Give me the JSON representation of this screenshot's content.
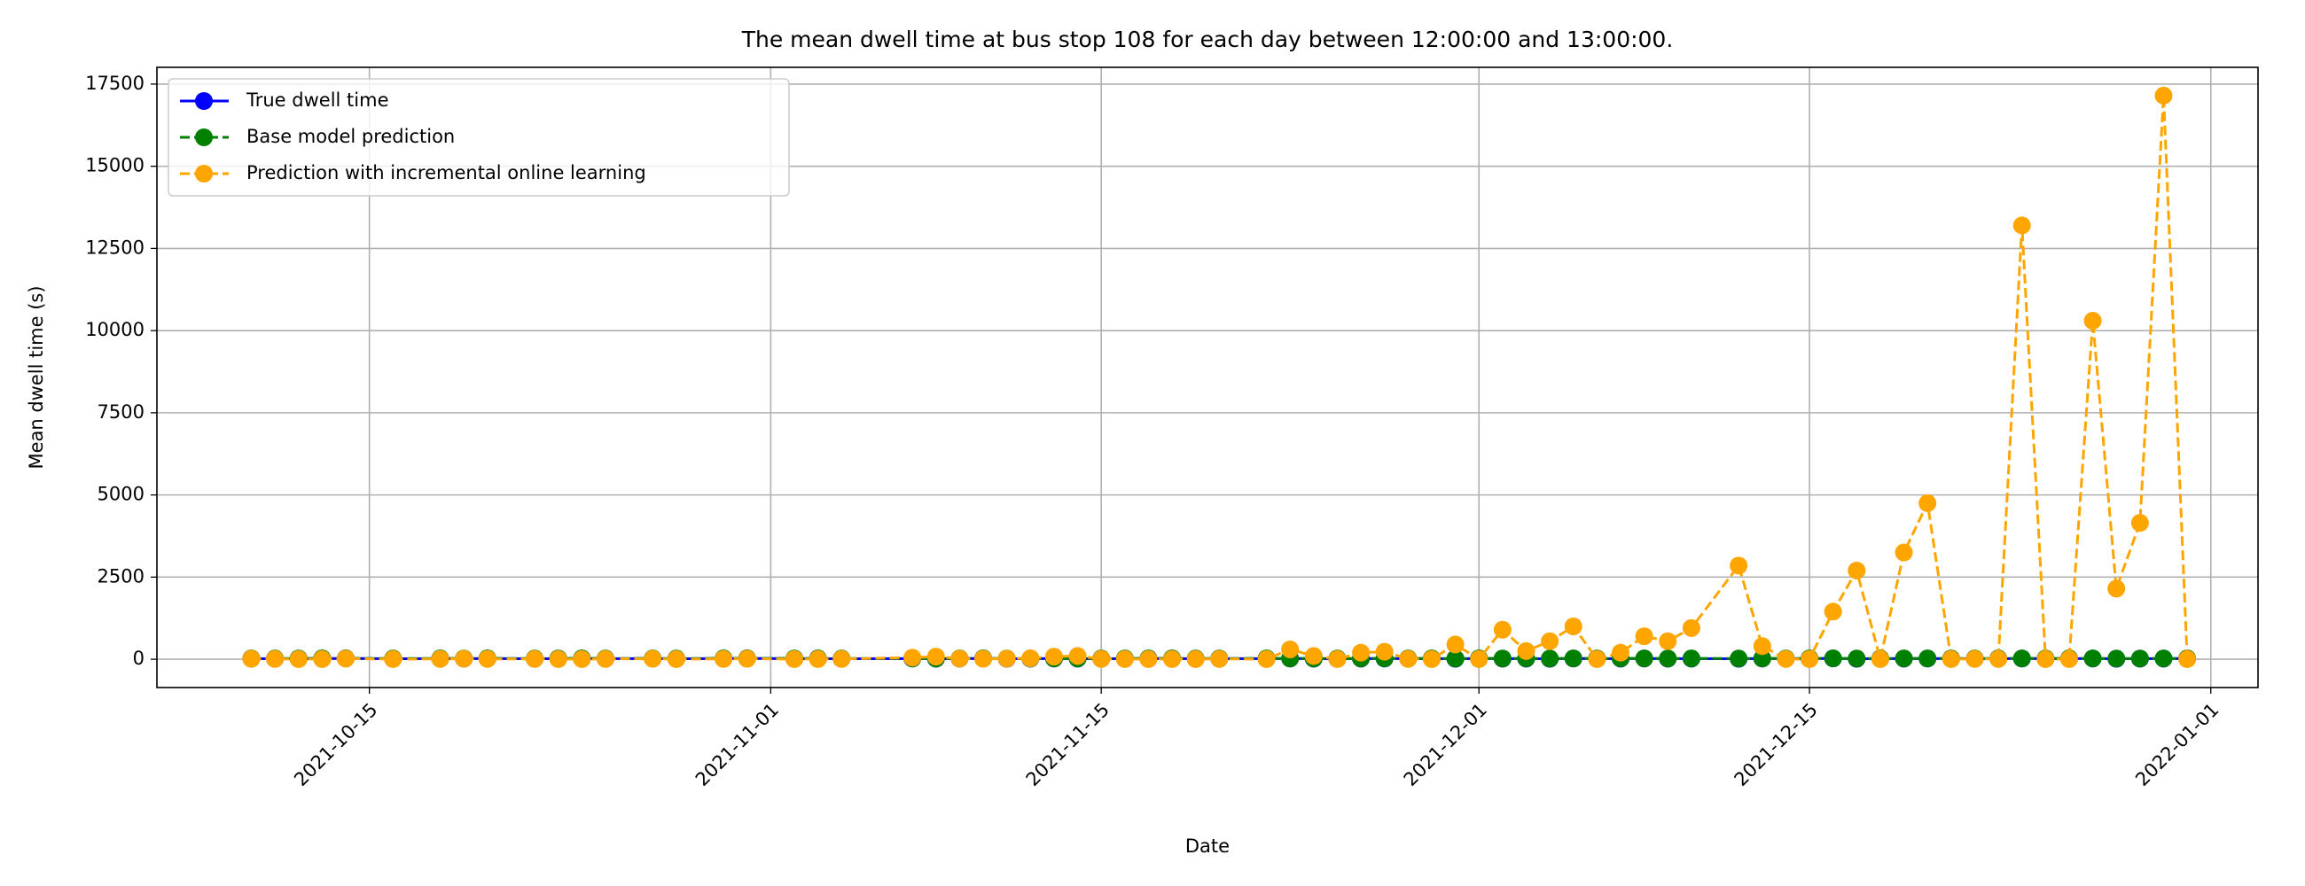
{
  "chart_data": {
    "type": "line",
    "title": "The mean dwell time at bus stop 108 for each day between 12:00:00 and 13:00:00.",
    "xlabel": "Date",
    "ylabel": "Mean dwell time (s)",
    "x": [
      "2021-10-10",
      "2021-10-11",
      "2021-10-12",
      "2021-10-13",
      "2021-10-14",
      "2021-10-16",
      "2021-10-18",
      "2021-10-19",
      "2021-10-20",
      "2021-10-22",
      "2021-10-23",
      "2021-10-24",
      "2021-10-25",
      "2021-10-27",
      "2021-10-28",
      "2021-10-30",
      "2021-10-31",
      "2021-11-02",
      "2021-11-03",
      "2021-11-04",
      "2021-11-07",
      "2021-11-08",
      "2021-11-09",
      "2021-11-10",
      "2021-11-11",
      "2021-11-12",
      "2021-11-13",
      "2021-11-14",
      "2021-11-15",
      "2021-11-16",
      "2021-11-17",
      "2021-11-18",
      "2021-11-19",
      "2021-11-20",
      "2021-11-22",
      "2021-11-23",
      "2021-11-24",
      "2021-11-25",
      "2021-11-26",
      "2021-11-27",
      "2021-11-28",
      "2021-11-29",
      "2021-11-30",
      "2021-12-01",
      "2021-12-02",
      "2021-12-03",
      "2021-12-04",
      "2021-12-05",
      "2021-12-06",
      "2021-12-07",
      "2021-12-08",
      "2021-12-09",
      "2021-12-10",
      "2021-12-12",
      "2021-12-13",
      "2021-12-14",
      "2021-12-15",
      "2021-12-16",
      "2021-12-17",
      "2021-12-18",
      "2021-12-19",
      "2021-12-20",
      "2021-12-21",
      "2021-12-22",
      "2021-12-23",
      "2021-12-24",
      "2021-12-25",
      "2021-12-26",
      "2021-12-27",
      "2021-12-28",
      "2021-12-29",
      "2021-12-30",
      "2021-12-31"
    ],
    "series": [
      {
        "name": "True dwell time",
        "color": "#0000ff",
        "dash": false,
        "values": [
          20,
          15,
          18,
          22,
          25,
          15,
          20,
          18,
          22,
          16,
          20,
          24,
          18,
          20,
          15,
          22,
          25,
          18,
          20,
          15,
          22,
          18,
          20,
          25,
          15,
          18,
          22,
          20,
          16,
          18,
          20,
          22,
          15,
          18,
          20,
          24,
          18,
          15,
          20,
          22,
          18,
          20,
          16,
          22,
          18,
          20,
          15,
          22,
          18,
          20,
          24,
          18,
          20,
          15,
          22,
          18,
          20,
          25,
          15,
          18,
          20,
          22,
          18,
          16,
          20,
          22,
          18,
          20,
          24,
          15,
          18,
          20,
          22
        ]
      },
      {
        "name": "Base model prediction",
        "color": "#008000",
        "dash": true,
        "values": [
          25,
          22,
          24,
          26,
          28,
          22,
          25,
          24,
          26,
          22,
          24,
          27,
          24,
          25,
          22,
          26,
          28,
          24,
          25,
          22,
          26,
          24,
          25,
          28,
          22,
          24,
          26,
          25,
          22,
          24,
          25,
          26,
          22,
          24,
          25,
          27,
          24,
          22,
          25,
          26,
          24,
          25,
          22,
          26,
          24,
          25,
          22,
          26,
          24,
          25,
          27,
          24,
          25,
          22,
          26,
          24,
          25,
          28,
          22,
          24,
          25,
          26,
          24,
          22,
          25,
          26,
          24,
          25,
          27,
          22,
          24,
          25,
          26
        ]
      },
      {
        "name": "Prediction with incremental online learning",
        "color": "#ffa500",
        "dash": true,
        "values": [
          15,
          10,
          5,
          5,
          20,
          5,
          10,
          15,
          10,
          10,
          5,
          5,
          10,
          15,
          5,
          10,
          15,
          5,
          5,
          10,
          50,
          80,
          20,
          15,
          20,
          30,
          80,
          100,
          10,
          5,
          5,
          5,
          5,
          10,
          5,
          300,
          100,
          5,
          200,
          230,
          10,
          5,
          450,
          5,
          900,
          250,
          550,
          1000,
          5,
          200,
          700,
          550,
          950,
          2850,
          400,
          10,
          5,
          1450,
          2700,
          5,
          3250,
          4750,
          5,
          10,
          10,
          13200,
          5,
          5,
          10300,
          2150,
          4150,
          17150,
          5
        ]
      }
    ],
    "xlim": [
      "2021-10-06",
      "2022-01-03"
    ],
    "xticks": [
      "2021-10-15",
      "2021-11-01",
      "2021-11-15",
      "2021-12-01",
      "2021-12-15",
      "2022-01-01"
    ],
    "ylim": [
      -860,
      18010
    ],
    "yticks": [
      0,
      2500,
      5000,
      7500,
      10000,
      12500,
      15000,
      17500
    ],
    "grid": true,
    "legend": "upper left"
  }
}
